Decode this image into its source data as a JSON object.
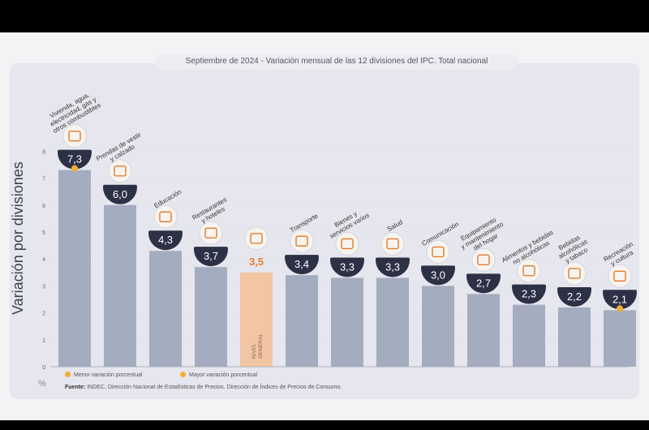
{
  "header": {
    "title_prefix": "Septiembre de 2024 - ",
    "title_main": "Variación mensual de las 12 divisiones del IPC. Total nacional"
  },
  "legend": {
    "min_label": "Menor variación porcentual",
    "max_label": "Mayor variación porcentual"
  },
  "source": {
    "label": "Fuente:",
    "text": " INDEC. Dirección Nacional de Estadísticas de Precios. Dirección de Índices de Precios de Consumo."
  },
  "colors": {
    "bar": "#a4adbf",
    "highlight_bar": "#f2c6a3",
    "badge": "#2d3146",
    "highlight_text": "#e87e2c",
    "marker": "#f0b030"
  },
  "chart_data": {
    "type": "bar",
    "title": "Variación mensual de las 12 divisiones del IPC. Total nacional",
    "ylabel": "Variación por divisiones",
    "yunit": "%",
    "ylim": [
      0,
      8
    ],
    "yticks": [
      "0",
      "1",
      "2",
      "3",
      "4",
      "5",
      "6",
      "7",
      "8"
    ],
    "categories": [
      "Vivienda, agua, electricidad, gas y otros combustibles",
      "Prendas de vestir y calzado",
      "Educación",
      "Restaurantes y hoteles",
      "NIVEL GENERAL",
      "Transporte",
      "Bienes y servicios varios",
      "Salud",
      "Comunicación",
      "Equipamiento y mantenimiento del hogar",
      "Alimentos y bebidas no alcohólicas",
      "Bebidas alcohólicas y tabaco",
      "Recreación y cultura"
    ],
    "values": [
      7.3,
      6.0,
      4.3,
      3.7,
      3.5,
      3.4,
      3.3,
      3.3,
      3.0,
      2.7,
      2.3,
      2.2,
      2.1
    ],
    "value_labels": [
      "7,3",
      "6,0",
      "4,3",
      "3,7",
      "3,5",
      "3,4",
      "3,3",
      "3,3",
      "3,0",
      "2,7",
      "2,3",
      "2,2",
      "2,1"
    ],
    "category_lines": [
      [
        "Vivienda, agua,",
        "electricidad, gas y",
        "otros combustibles"
      ],
      [
        "Prendas de vestir",
        "y calzado"
      ],
      [
        "Educación"
      ],
      [
        "Restaurantes",
        "y hoteles"
      ],
      [],
      [
        "Transporte"
      ],
      [
        "Bienes y",
        "servicios varios"
      ],
      [
        "Salud"
      ],
      [
        "Comunicación"
      ],
      [
        "Equipamiento",
        "y mantenimiento",
        "del hogar"
      ],
      [
        "Alimentos y bebidas",
        "no alcohólicas"
      ],
      [
        "Bebidas",
        "alcohólicas",
        "y tabaco"
      ],
      [
        "Recreación",
        "y cultura"
      ]
    ],
    "bar_inner_label": [
      "NIVEL",
      "GENERAL"
    ],
    "highlight_index": 4,
    "max_index": 0,
    "min_index": 12,
    "icons": [
      "house-tools-icon",
      "shirt-icon",
      "book-icon",
      "utensils-icon",
      "basket-icon",
      "car-icon",
      "pencil-tools-icon",
      "first-aid-icon",
      "phone-icon",
      "furniture-icon",
      "food-icon",
      "drink-icon",
      "umbrella-icon"
    ]
  }
}
